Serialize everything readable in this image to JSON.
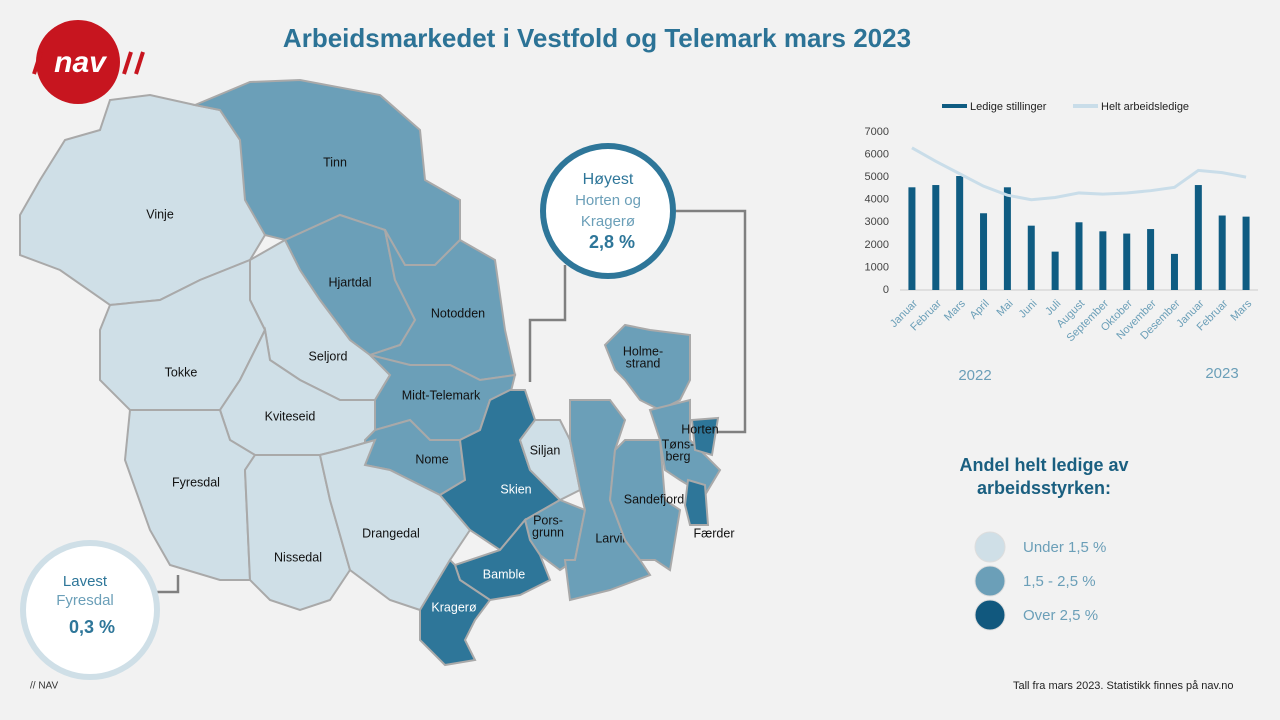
{
  "header": {
    "title": "Arbeidsmarkedet i Vestfold og Telemark mars 2023",
    "logo": "nav"
  },
  "map": {
    "regions": [
      {
        "label": [
          "Vinje"
        ],
        "color": "#cfdfe7"
      },
      {
        "label": [
          "Tinn"
        ],
        "color": "#6b9fb8"
      },
      {
        "label": [
          "Hjartdal"
        ],
        "color": "#6b9fb8"
      },
      {
        "label": [
          "Notodden"
        ],
        "color": "#6b9fb8"
      },
      {
        "label": [
          "Seljord"
        ],
        "color": "#cfdfe7"
      },
      {
        "label": [
          "Tokke"
        ],
        "color": "#cfdfe7"
      },
      {
        "label": [
          "Kviteseid"
        ],
        "color": "#cfdfe7"
      },
      {
        "label": [
          "Midt-Telemark"
        ],
        "color": "#6b9fb8"
      },
      {
        "label": [
          "Nome"
        ],
        "color": "#6b9fb8"
      },
      {
        "label": [
          "Fyresdal"
        ],
        "color": "#cfdfe7"
      },
      {
        "label": [
          "Nissedal"
        ],
        "color": "#cfdfe7"
      },
      {
        "label": [
          "Drangedal"
        ],
        "color": "#cfdfe7"
      },
      {
        "label": [
          "Skien"
        ],
        "color": "#2e7699"
      },
      {
        "label": [
          "Siljan"
        ],
        "color": "#cfdfe7"
      },
      {
        "label": [
          "Pors-",
          "grunn"
        ],
        "color": "#6b9fb8"
      },
      {
        "label": [
          "Bamble"
        ],
        "color": "#2e7699"
      },
      {
        "label": [
          "Kragerø"
        ],
        "color": "#2e7699"
      },
      {
        "label": [
          "Larvik"
        ],
        "color": "#6b9fb8"
      },
      {
        "label": [
          "Sandefjord"
        ],
        "color": "#6b9fb8"
      },
      {
        "label": [
          "Holme-",
          "strand"
        ],
        "color": "#6b9fb8"
      },
      {
        "label": [
          "Tøns-",
          "berg"
        ],
        "color": "#6b9fb8"
      },
      {
        "label": [
          "Horten"
        ],
        "color": "#2e7699"
      },
      {
        "label": [
          "Færder"
        ],
        "color": "#2e7699"
      }
    ]
  },
  "callouts": {
    "high": {
      "lines": [
        "Høyest",
        "Horten og",
        "Kragerø"
      ],
      "value": "2,8 %"
    },
    "low": {
      "lines": [
        "Lavest",
        "Fyresdal"
      ],
      "value": "0,3 %"
    }
  },
  "legend": {
    "title": [
      "Andel helt ledige av",
      "arbeidsstyrken:"
    ],
    "items": [
      {
        "label": "Under 1,5 %",
        "color": "#cfdfe7"
      },
      {
        "label": "1,5 - 2,5 %",
        "color": "#6b9fb8"
      },
      {
        "label": "Over 2,5 %",
        "color": "#11587e"
      }
    ]
  },
  "chart_data": {
    "type": "bar-line",
    "categories": [
      "Januar",
      "Februar",
      "Mars",
      "April",
      "Mai",
      "Juni",
      "Juli",
      "August",
      "September",
      "Oktober",
      "November",
      "Desember",
      "Januar",
      "Februar",
      "Mars"
    ],
    "years": [
      "2022",
      "2023"
    ],
    "series": [
      {
        "name": "Ledige stillinger",
        "color": "#0f5c82",
        "type": "bar",
        "values": [
          4550,
          4650,
          5050,
          3400,
          4550,
          2850,
          1700,
          3000,
          2600,
          2500,
          2700,
          1600,
          4650,
          3300,
          3250
        ]
      },
      {
        "name": "Helt arbeidsledige",
        "color": "#c9dde9",
        "type": "line",
        "values": [
          6300,
          5700,
          5150,
          4600,
          4200,
          4000,
          4100,
          4300,
          4250,
          4300,
          4400,
          4550,
          5300,
          5200,
          5000
        ]
      }
    ],
    "ylim": [
      0,
      7000
    ],
    "yticks": [
      0,
      1000,
      2000,
      3000,
      4000,
      5000,
      6000,
      7000
    ]
  },
  "footer": {
    "brand": "// NAV",
    "source": "Tall fra mars 2023. Statistikk finnes på nav.no"
  }
}
